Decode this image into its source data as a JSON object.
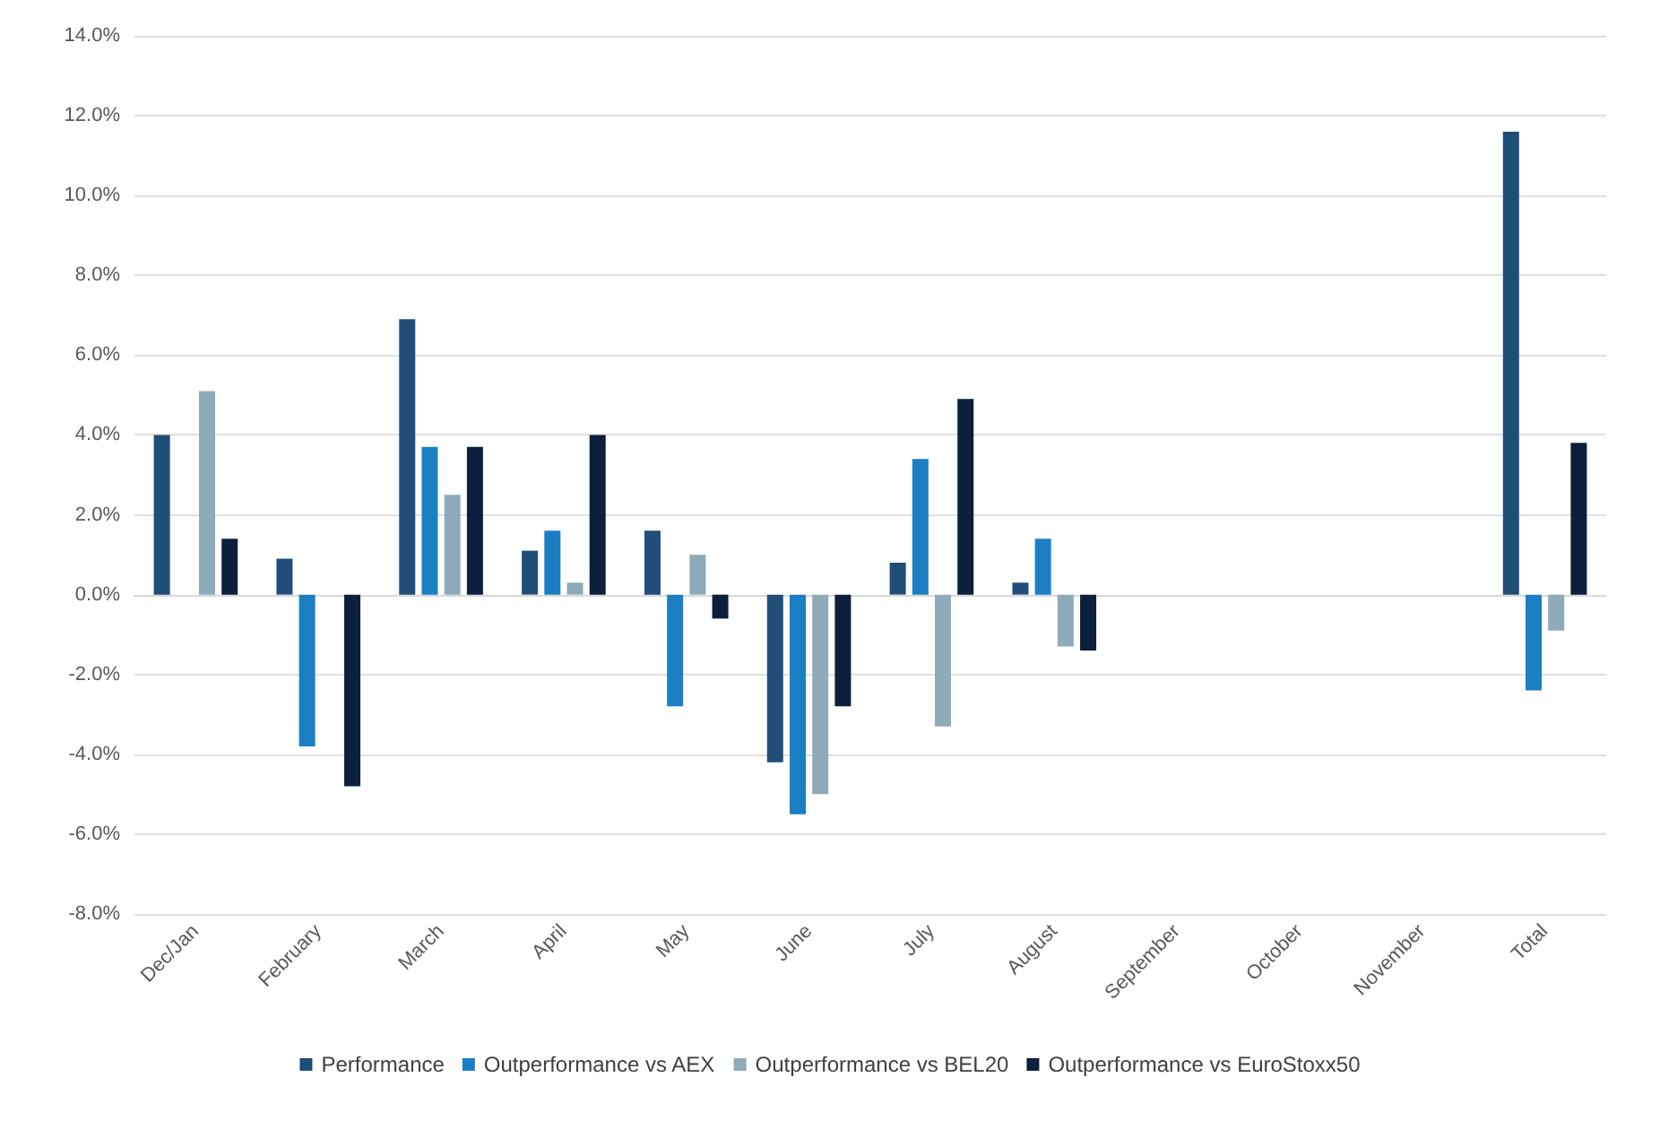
{
  "chart_data": {
    "type": "bar",
    "categories": [
      "Dec/Jan",
      "February",
      "March",
      "April",
      "May",
      "June",
      "July",
      "August",
      "September",
      "October",
      "November",
      "Total"
    ],
    "series": [
      {
        "name": "Performance",
        "color": "#1f4e79",
        "values": [
          4.0,
          0.9,
          6.9,
          1.1,
          1.6,
          -4.2,
          0.8,
          0.3,
          null,
          null,
          null,
          11.6
        ]
      },
      {
        "name": "Outperformance vs AEX",
        "color": "#1b7fc4",
        "values": [
          null,
          -3.8,
          3.7,
          1.6,
          -2.8,
          -5.5,
          3.4,
          1.4,
          null,
          null,
          null,
          -2.4
        ]
      },
      {
        "name": "Outperformance vs BEL20",
        "color": "#8faab8",
        "values": [
          5.1,
          null,
          2.5,
          0.3,
          1.0,
          -5.0,
          -3.3,
          -1.3,
          null,
          null,
          null,
          -0.9
        ]
      },
      {
        "name": "Outperformance vs EuroStoxx50",
        "color": "#0d1f3c",
        "values": [
          1.4,
          -4.8,
          3.7,
          4.0,
          -0.6,
          -2.8,
          4.9,
          -1.4,
          null,
          null,
          null,
          3.8
        ]
      }
    ],
    "ylim": [
      -8,
      14
    ],
    "yticks": [
      {
        "value": -8,
        "label": "-8.0%"
      },
      {
        "value": -6,
        "label": "-6.0%"
      },
      {
        "value": -4,
        "label": "-4.0%"
      },
      {
        "value": -2,
        "label": "-2.0%"
      },
      {
        "value": 0,
        "label": "0.0%"
      },
      {
        "value": 2,
        "label": "2.0%"
      },
      {
        "value": 4,
        "label": "4.0%"
      },
      {
        "value": 6,
        "label": "6.0%"
      },
      {
        "value": 8,
        "label": "8.0%"
      },
      {
        "value": 10,
        "label": "10.0%"
      },
      {
        "value": 12,
        "label": "12.0%"
      },
      {
        "value": 14,
        "label": "14.0%"
      }
    ],
    "grid": "y",
    "legend": "bottom"
  }
}
